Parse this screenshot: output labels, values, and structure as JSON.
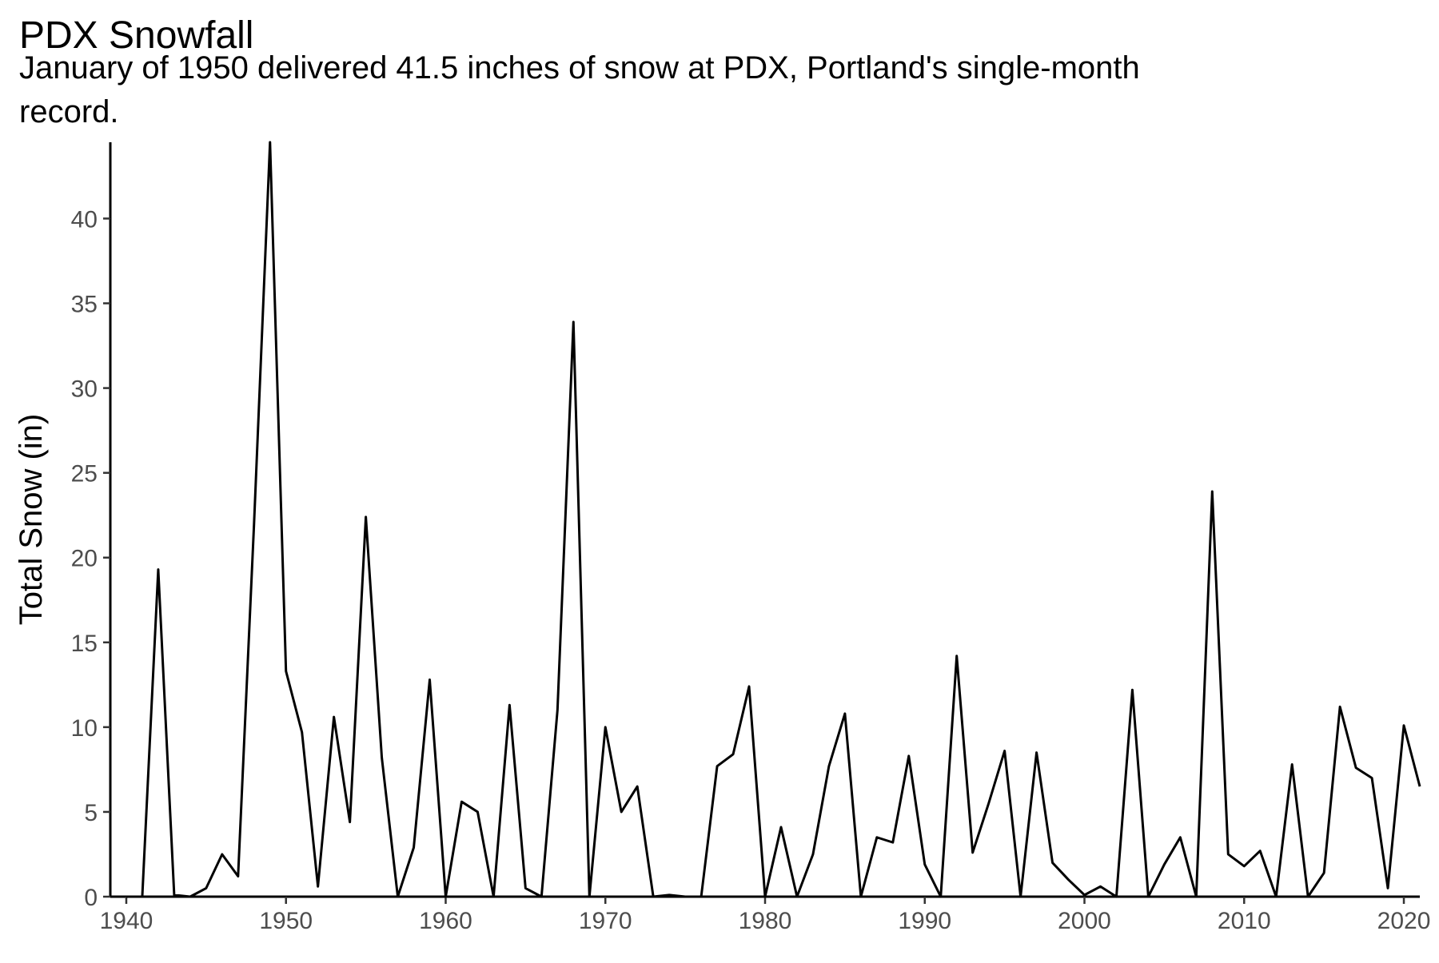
{
  "chart_data": {
    "type": "line",
    "title": "PDX Snowfall",
    "subtitle_lines": [
      "January of 1950 delivered 41.5 inches of snow at PDX, Portland's single-month",
      "record."
    ],
    "xlabel": "",
    "ylabel": "Total Snow (in)",
    "xlim": [
      1939,
      2021
    ],
    "ylim": [
      0,
      44.5
    ],
    "x_ticks": [
      1940,
      1950,
      1960,
      1970,
      1980,
      1990,
      2000,
      2010,
      2020
    ],
    "y_ticks": [
      0,
      5,
      10,
      15,
      20,
      25,
      30,
      35,
      40
    ],
    "grid": false,
    "legend": "none",
    "line_color": "#000000",
    "series": [
      {
        "x": [
          1940,
          1941,
          1942,
          1943,
          1944,
          1945,
          1946,
          1947,
          1948,
          1949,
          1950,
          1951,
          1952,
          1953,
          1954,
          1955,
          1956,
          1957,
          1958,
          1959,
          1960,
          1961,
          1962,
          1963,
          1964,
          1965,
          1966,
          1967,
          1968,
          1969,
          1970,
          1971,
          1972,
          1973,
          1974,
          1975,
          1976,
          1977,
          1978,
          1979,
          1980,
          1981,
          1982,
          1983,
          1984,
          1985,
          1986,
          1987,
          1988,
          1989,
          1990,
          1991,
          1992,
          1993,
          1994,
          1995,
          1996,
          1997,
          1998,
          1999,
          2000,
          2001,
          2002,
          2003,
          2004,
          2005,
          2006,
          2007,
          2008,
          2009,
          2010,
          2011,
          2012,
          2013,
          2014,
          2015,
          2016,
          2017,
          2018,
          2019,
          2020,
          2021
        ],
        "y": [
          0,
          0,
          19.3,
          0.1,
          0,
          0.5,
          2.5,
          1.2,
          22,
          44.5,
          13.3,
          9.7,
          0.6,
          10.6,
          4.4,
          22.4,
          8.2,
          0,
          2.9,
          12.8,
          0,
          5.6,
          5,
          0,
          11.3,
          0.5,
          0,
          11,
          33.9,
          0,
          10,
          5,
          6.5,
          0,
          0.1,
          0,
          0,
          7.7,
          8.4,
          12.4,
          0,
          4.1,
          0,
          2.5,
          7.7,
          10.8,
          0,
          3.5,
          3.2,
          8.3,
          1.9,
          0,
          14.2,
          2.6,
          5.5,
          8.6,
          0,
          8.5,
          2,
          1,
          0.1,
          0.6,
          0,
          12.2,
          0,
          1.9,
          3.5,
          0,
          23.9,
          2.5,
          1.8,
          2.7,
          0,
          7.8,
          0,
          1.4,
          11.2,
          7.6,
          7,
          0.5,
          10.1,
          6.5
        ]
      }
    ]
  }
}
